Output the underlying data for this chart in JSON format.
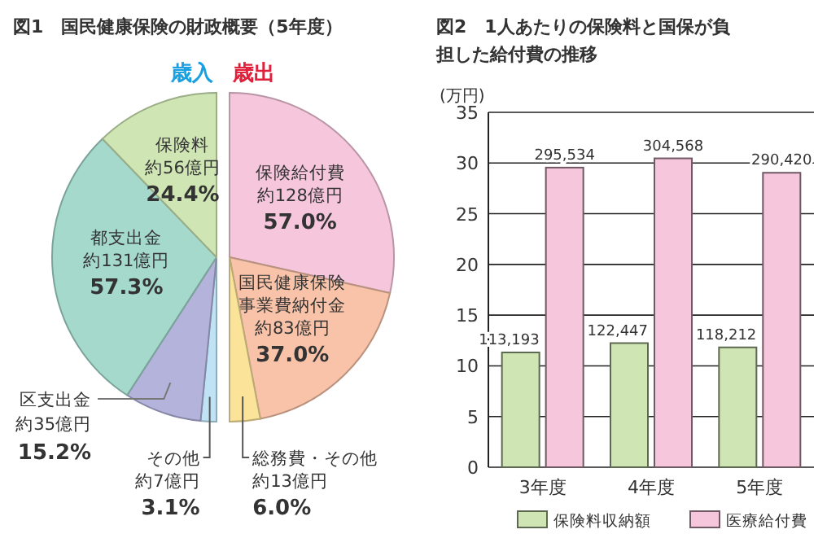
{
  "chart_data": [
    {
      "type": "pie",
      "title": "図1　国民健康保険の財政概要（5年度）",
      "annotations": [
        "歳入",
        "歳出"
      ],
      "categories": [
        "保険給付費",
        "国民健康保険事業費納付金",
        "総務費・その他",
        "その他",
        "区支出金",
        "都支出金",
        "保険料"
      ],
      "values": [
        57.0,
        37.0,
        6.0,
        3.1,
        15.2,
        57.3,
        24.4
      ],
      "colors": [
        "#f6c6dc",
        "#f8c3a8",
        "#fbe49a",
        "#bfe3f5",
        "#b3b3dc",
        "#a5d9cc",
        "#cfe6b4"
      ],
      "value_labels": [
        "約128億円\n57.0%",
        "約83億円\n37.0%",
        "約13億円\n6.0%",
        "約7億円\n3.1%",
        "約35億円\n15.2%",
        "約131億円\n57.3%",
        "約56億円\n24.4%"
      ]
    },
    {
      "type": "bar",
      "title": "図2　1人あたりの保険料と国保が負担した給付費の推移",
      "ylabel": "(万円)",
      "categories": [
        "3年度",
        "4年度",
        "5年度"
      ],
      "series": [
        {
          "name": "保険料収納額",
          "color": "#cfe6b4",
          "values": [
            11.32,
            12.24,
            11.82
          ]
        },
        {
          "name": "医療給付費",
          "color": "#f6c6dc",
          "values": [
            29.55,
            30.46,
            29.04
          ]
        }
      ],
      "annotations": [
        {
          "text": "113,193",
          "x": "3年度",
          "y": 11.32
        },
        {
          "text": "122,447",
          "x": "4年度",
          "y": 12.24
        },
        {
          "text": "118,212",
          "x": "5年度",
          "y": 11.82
        },
        {
          "text": "295,534",
          "x": "3年度",
          "y": 29.55
        },
        {
          "text": "304,568",
          "x": "4年度",
          "y": 30.46
        },
        {
          "text": "290,420",
          "x": "5年度",
          "y": 29.04
        }
      ],
      "ylim": [
        0,
        35
      ],
      "yticks": [
        0,
        5,
        10,
        15,
        20,
        25,
        30,
        35
      ],
      "grid": "y",
      "legend": "bottom"
    }
  ]
}
